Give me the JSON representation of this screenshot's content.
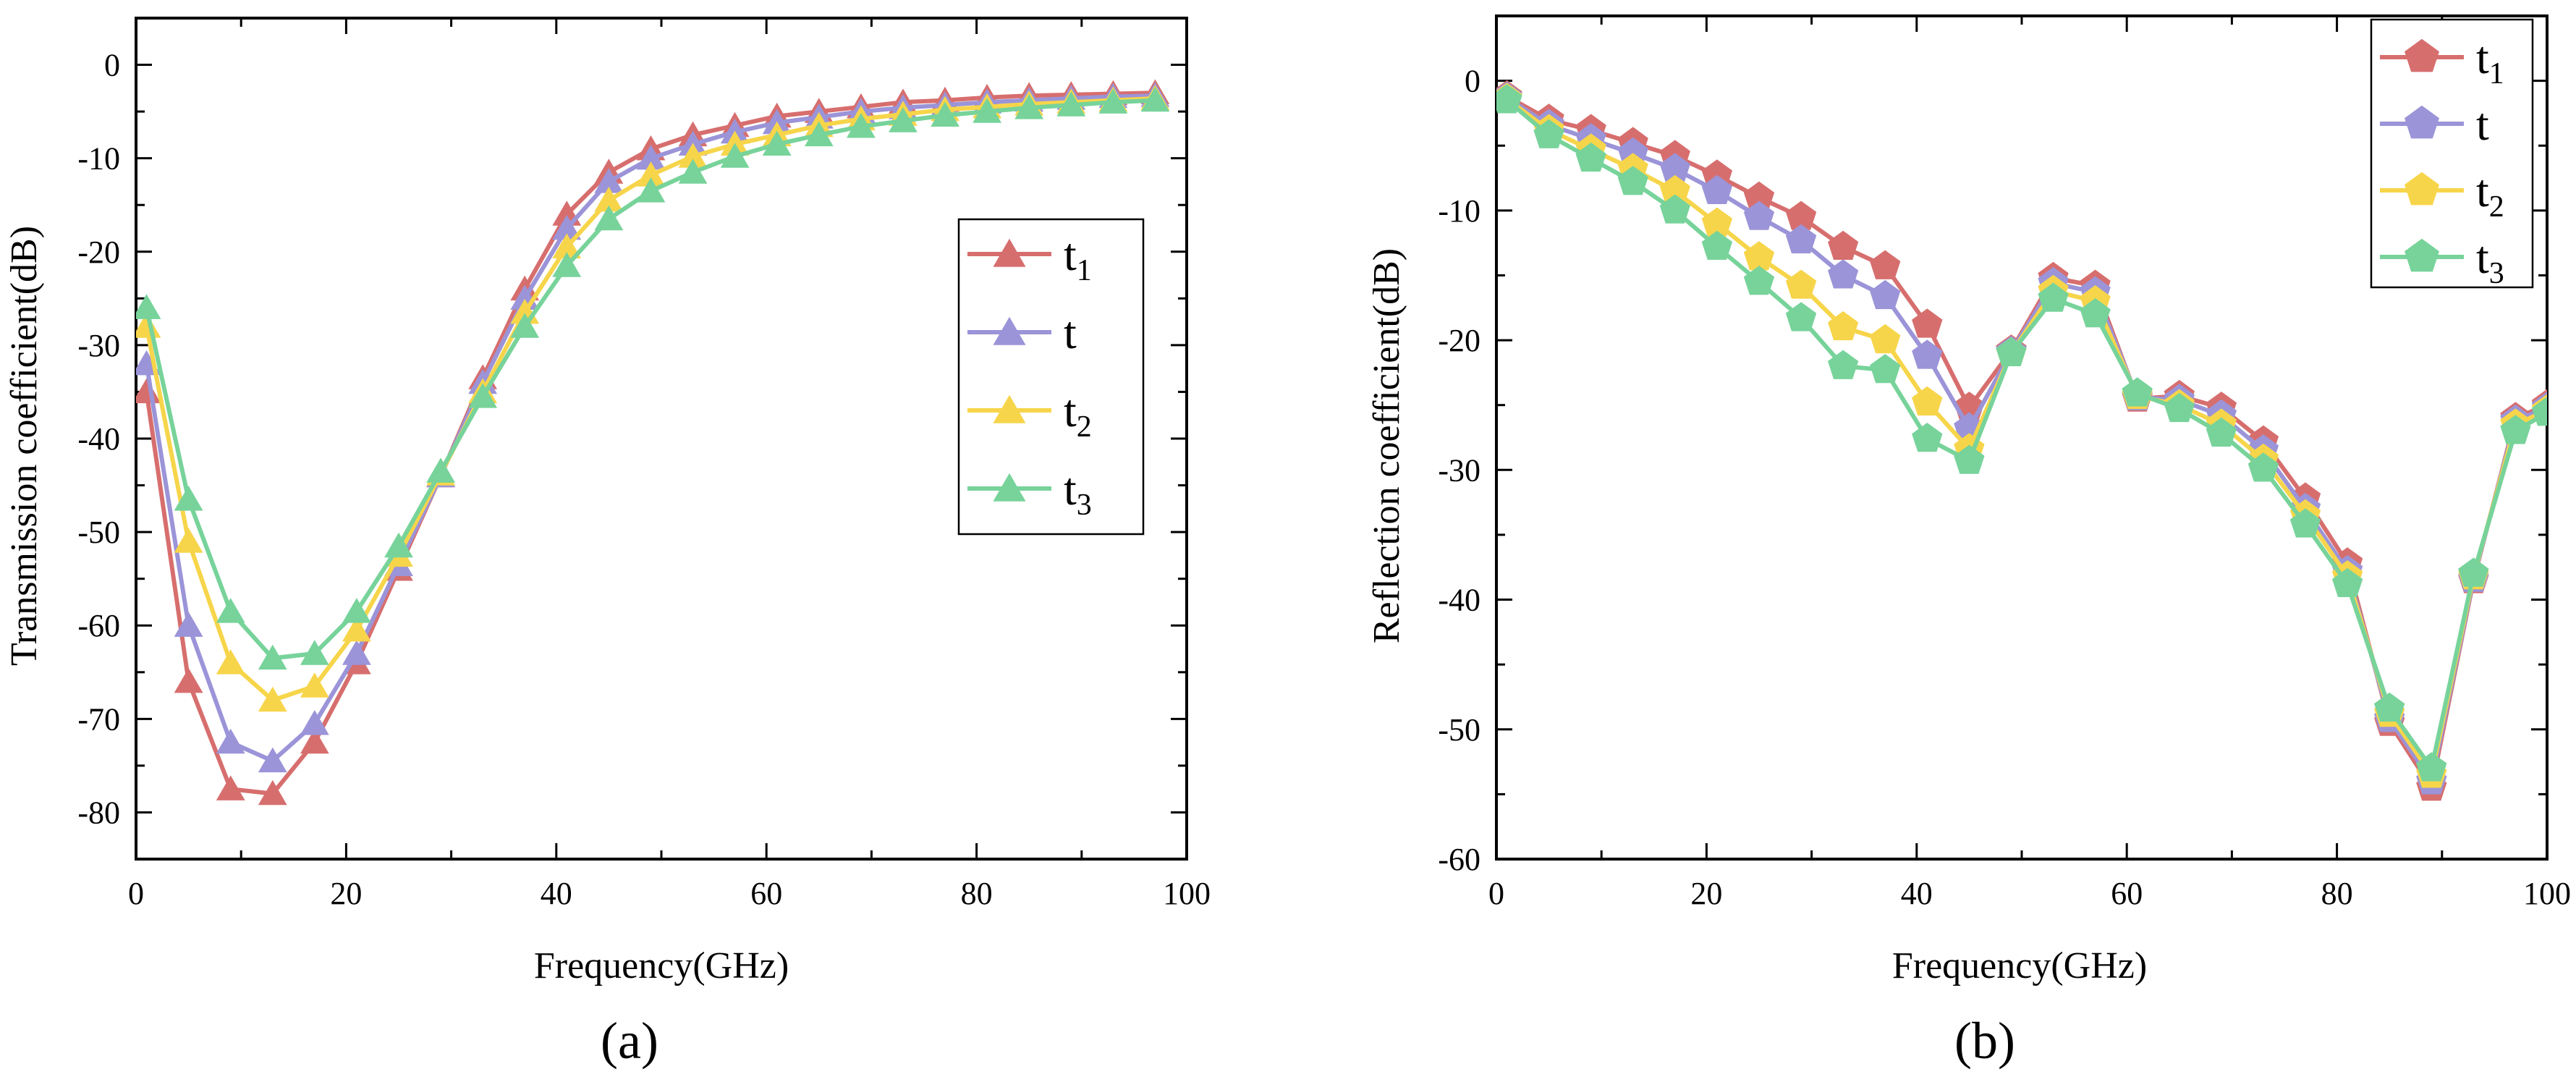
{
  "chart_data": [
    {
      "type": "line",
      "panel_label": "(a)",
      "xlabel": "Frequency(GHz)",
      "ylabel": "Transmission coefficient(dB)",
      "xlim": [
        0,
        100
      ],
      "ylim": [
        -85,
        5
      ],
      "xticks": [
        0,
        20,
        40,
        60,
        80,
        100
      ],
      "yticks": [
        0,
        -10,
        -20,
        -30,
        -40,
        -50,
        -60,
        -70,
        -80
      ],
      "grid": false,
      "legend_position": "center-right",
      "marker": "triangle",
      "x": [
        1,
        5,
        9,
        13,
        17,
        21,
        25,
        29,
        33,
        37,
        41,
        45,
        49,
        53,
        57,
        61,
        65,
        69,
        73,
        77,
        81,
        85,
        89,
        93,
        97
      ],
      "series": [
        {
          "name": "t",
          "sub": "1",
          "color": "#D76E6E",
          "values": [
            -35,
            -66,
            -77.5,
            -78,
            -72.5,
            -64,
            -54,
            -44,
            -33.5,
            -24,
            -16,
            -11.5,
            -9,
            -7.5,
            -6.5,
            -5.5,
            -5,
            -4.5,
            -4,
            -3.8,
            -3.5,
            -3.3,
            -3.2,
            -3.1,
            -3
          ]
        },
        {
          "name": "t",
          "sub": "",
          "color": "#9B94D8",
          "values": [
            -32,
            -60,
            -72.5,
            -74.5,
            -70.5,
            -63,
            -53.5,
            -44,
            -34,
            -25,
            -17.5,
            -12.5,
            -10,
            -8.5,
            -7.2,
            -6.2,
            -5.6,
            -5,
            -4.6,
            -4.3,
            -4,
            -3.8,
            -3.6,
            -3.4,
            -3.3
          ]
        },
        {
          "name": "t",
          "sub": "2",
          "color": "#F7D54A",
          "values": [
            -28,
            -51,
            -64,
            -68,
            -66.5,
            -60.5,
            -52.5,
            -43.8,
            -35,
            -26.5,
            -19.5,
            -14.5,
            -11.8,
            -9.8,
            -8.5,
            -7.5,
            -6.5,
            -5.8,
            -5.3,
            -4.8,
            -4.5,
            -4.2,
            -4,
            -3.8,
            -3.6
          ]
        },
        {
          "name": "t",
          "sub": "3",
          "color": "#77D39A",
          "values": [
            -26,
            -46.5,
            -58.5,
            -63.5,
            -63,
            -58.5,
            -51.5,
            -43.5,
            -35.5,
            -28,
            -21.5,
            -16.5,
            -13.5,
            -11.5,
            -9.8,
            -8.5,
            -7.5,
            -6.6,
            -6,
            -5.4,
            -5,
            -4.6,
            -4.3,
            -4,
            -3.8
          ]
        }
      ]
    },
    {
      "type": "line",
      "panel_label": "(b)",
      "xlabel": "Frequency(GHz)",
      "ylabel": "Reflection coefficient(dB)",
      "xlim": [
        0,
        100
      ],
      "ylim": [
        -60,
        5
      ],
      "xticks": [
        0,
        20,
        40,
        60,
        80,
        100
      ],
      "yticks": [
        0,
        -10,
        -20,
        -30,
        -40,
        -50,
        -60
      ],
      "grid": false,
      "legend_position": "top-right",
      "marker": "pentagon",
      "x": [
        1,
        5,
        9,
        13,
        17,
        21,
        25,
        29,
        33,
        37,
        41,
        45,
        49,
        53,
        57,
        61,
        65,
        69,
        73,
        77,
        81,
        85,
        89,
        93,
        97,
        100
      ],
      "series": [
        {
          "name": "t",
          "sub": "1",
          "color": "#D76E6E",
          "values": [
            -1.2,
            -3,
            -3.8,
            -4.8,
            -5.8,
            -7.3,
            -9,
            -10.5,
            -12.8,
            -14.3,
            -18.8,
            -25.2,
            -20.8,
            -15.2,
            -15.8,
            -24.5,
            -24.3,
            -25.2,
            -27.8,
            -32.2,
            -37.2,
            -49.5,
            -54.5,
            -38.5,
            -26,
            -25
          ]
        },
        {
          "name": "t",
          "sub": "",
          "color": "#9B94D8",
          "values": [
            -1.3,
            -3.4,
            -4.5,
            -5.6,
            -6.8,
            -8.5,
            -10.5,
            -12.3,
            -15,
            -16.6,
            -21.2,
            -26.8,
            -20.9,
            -15.6,
            -16.3,
            -24.4,
            -24.6,
            -25.8,
            -28.5,
            -33,
            -37.8,
            -49.2,
            -54,
            -38.4,
            -26.2,
            -25.2
          ]
        },
        {
          "name": "t",
          "sub": "2",
          "color": "#F7D54A",
          "values": [
            -1.4,
            -3.8,
            -5.3,
            -6.8,
            -8.5,
            -11,
            -13.6,
            -15.8,
            -19,
            -20,
            -24.8,
            -28.4,
            -21,
            -16.2,
            -17,
            -24.3,
            -25,
            -26.5,
            -29.2,
            -33.5,
            -38.2,
            -48.8,
            -53.5,
            -38.2,
            -26.5,
            -25.4
          ]
        },
        {
          "name": "t",
          "sub": "3",
          "color": "#77D39A",
          "values": [
            -1.5,
            -4.2,
            -6,
            -7.8,
            -10,
            -12.8,
            -15.5,
            -18.3,
            -22,
            -22.3,
            -27.6,
            -29.3,
            -21,
            -16.8,
            -18,
            -24.1,
            -25.3,
            -27.2,
            -29.9,
            -34.2,
            -38.8,
            -48.4,
            -53,
            -38,
            -27,
            -25.6
          ]
        }
      ]
    }
  ]
}
